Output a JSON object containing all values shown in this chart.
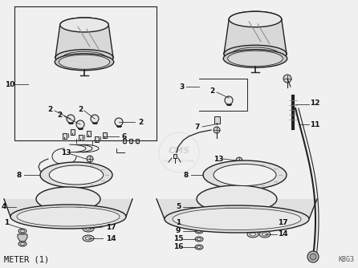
{
  "background_color": "#f0f0f0",
  "line_color": "#222222",
  "text_color": "#111111",
  "fig_width": 4.46,
  "fig_height": 3.34,
  "dpi": 100,
  "bottom_left_label": "METER (1)",
  "bottom_right_label": "KBG3"
}
